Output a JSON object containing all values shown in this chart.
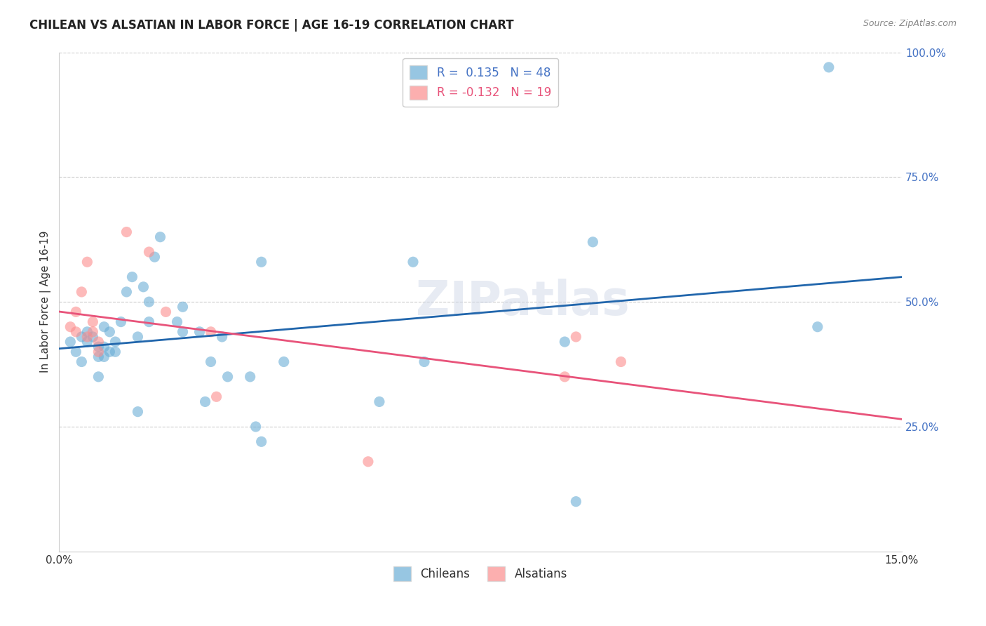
{
  "title": "CHILEAN VS ALSATIAN IN LABOR FORCE | AGE 16-19 CORRELATION CHART",
  "source": "Source: ZipAtlas.com",
  "xlabel": "",
  "ylabel": "In Labor Force | Age 16-19",
  "xlim": [
    0.0,
    0.15
  ],
  "ylim": [
    0.0,
    1.0
  ],
  "xticks": [
    0.0,
    0.03,
    0.06,
    0.09,
    0.12,
    0.15
  ],
  "xticklabels": [
    "0.0%",
    "",
    "",
    "",
    "",
    "15.0%"
  ],
  "yticks_right": [
    0.0,
    0.25,
    0.5,
    0.75,
    1.0
  ],
  "ytick_labels_right": [
    "",
    "25.0%",
    "50.0%",
    "75.0%",
    "100.0%"
  ],
  "blue_r": 0.135,
  "blue_n": 48,
  "pink_r": -0.132,
  "pink_n": 19,
  "blue_color": "#6baed6",
  "pink_color": "#fc8d8d",
  "blue_line_color": "#2166ac",
  "pink_line_color": "#e8537a",
  "background_color": "#ffffff",
  "watermark": "ZIPatlas",
  "chileans_x": [
    0.002,
    0.003,
    0.004,
    0.004,
    0.005,
    0.005,
    0.006,
    0.007,
    0.007,
    0.007,
    0.008,
    0.008,
    0.008,
    0.009,
    0.009,
    0.01,
    0.01,
    0.011,
    0.012,
    0.013,
    0.014,
    0.014,
    0.015,
    0.016,
    0.016,
    0.017,
    0.018,
    0.021,
    0.022,
    0.022,
    0.025,
    0.026,
    0.027,
    0.029,
    0.03,
    0.034,
    0.035,
    0.036,
    0.036,
    0.04,
    0.057,
    0.063,
    0.065,
    0.09,
    0.092,
    0.095,
    0.135,
    0.137
  ],
  "chileans_y": [
    0.42,
    0.4,
    0.43,
    0.38,
    0.44,
    0.42,
    0.43,
    0.39,
    0.41,
    0.35,
    0.39,
    0.41,
    0.45,
    0.4,
    0.44,
    0.4,
    0.42,
    0.46,
    0.52,
    0.55,
    0.43,
    0.28,
    0.53,
    0.5,
    0.46,
    0.59,
    0.63,
    0.46,
    0.44,
    0.49,
    0.44,
    0.3,
    0.38,
    0.43,
    0.35,
    0.35,
    0.25,
    0.22,
    0.58,
    0.38,
    0.3,
    0.58,
    0.38,
    0.42,
    0.1,
    0.62,
    0.45,
    0.97
  ],
  "alsatians_x": [
    0.002,
    0.003,
    0.003,
    0.004,
    0.005,
    0.005,
    0.006,
    0.006,
    0.007,
    0.007,
    0.012,
    0.016,
    0.019,
    0.027,
    0.028,
    0.055,
    0.09,
    0.092,
    0.1
  ],
  "alsatians_y": [
    0.45,
    0.44,
    0.48,
    0.52,
    0.58,
    0.43,
    0.46,
    0.44,
    0.42,
    0.4,
    0.64,
    0.6,
    0.48,
    0.44,
    0.31,
    0.18,
    0.35,
    0.43,
    0.38
  ],
  "legend_labels": [
    "Chileans",
    "Alsatians"
  ]
}
